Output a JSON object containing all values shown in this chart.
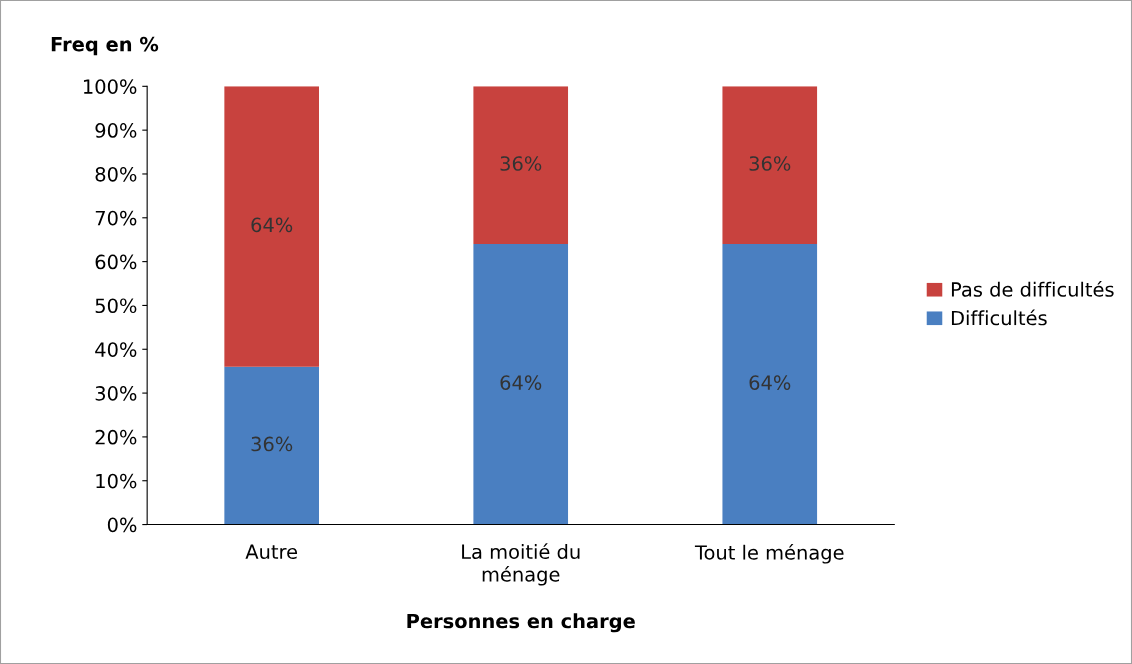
{
  "chart_data": {
    "type": "bar",
    "stacked": true,
    "xlabel": "Personnes en charge",
    "ylabel": "Freq en %",
    "categories": [
      "Autre",
      "La moitié du\nménage",
      "Tout le ménage"
    ],
    "series": [
      {
        "name": "Difficultés",
        "color": "#4a7fc1",
        "values": [
          36,
          64,
          64
        ],
        "value_labels": [
          "36%",
          "64%",
          "64%"
        ]
      },
      {
        "name": "Pas de difficultés",
        "color": "#c8423e",
        "values": [
          64,
          36,
          36
        ],
        "value_labels": [
          "64%",
          "36%",
          "36%"
        ]
      }
    ],
    "ylim": [
      0,
      100
    ],
    "yticks": [
      {
        "value": 0,
        "label": "0%"
      },
      {
        "value": 10,
        "label": "10%"
      },
      {
        "value": 20,
        "label": "20%"
      },
      {
        "value": 30,
        "label": "30%"
      },
      {
        "value": 40,
        "label": "40%"
      },
      {
        "value": 50,
        "label": "50%"
      },
      {
        "value": 60,
        "label": "60%"
      },
      {
        "value": 70,
        "label": "70%"
      },
      {
        "value": 80,
        "label": "80%"
      },
      {
        "value": 90,
        "label": "90%"
      },
      {
        "value": 100,
        "label": "100%"
      }
    ],
    "grid": false,
    "legend": "right"
  }
}
